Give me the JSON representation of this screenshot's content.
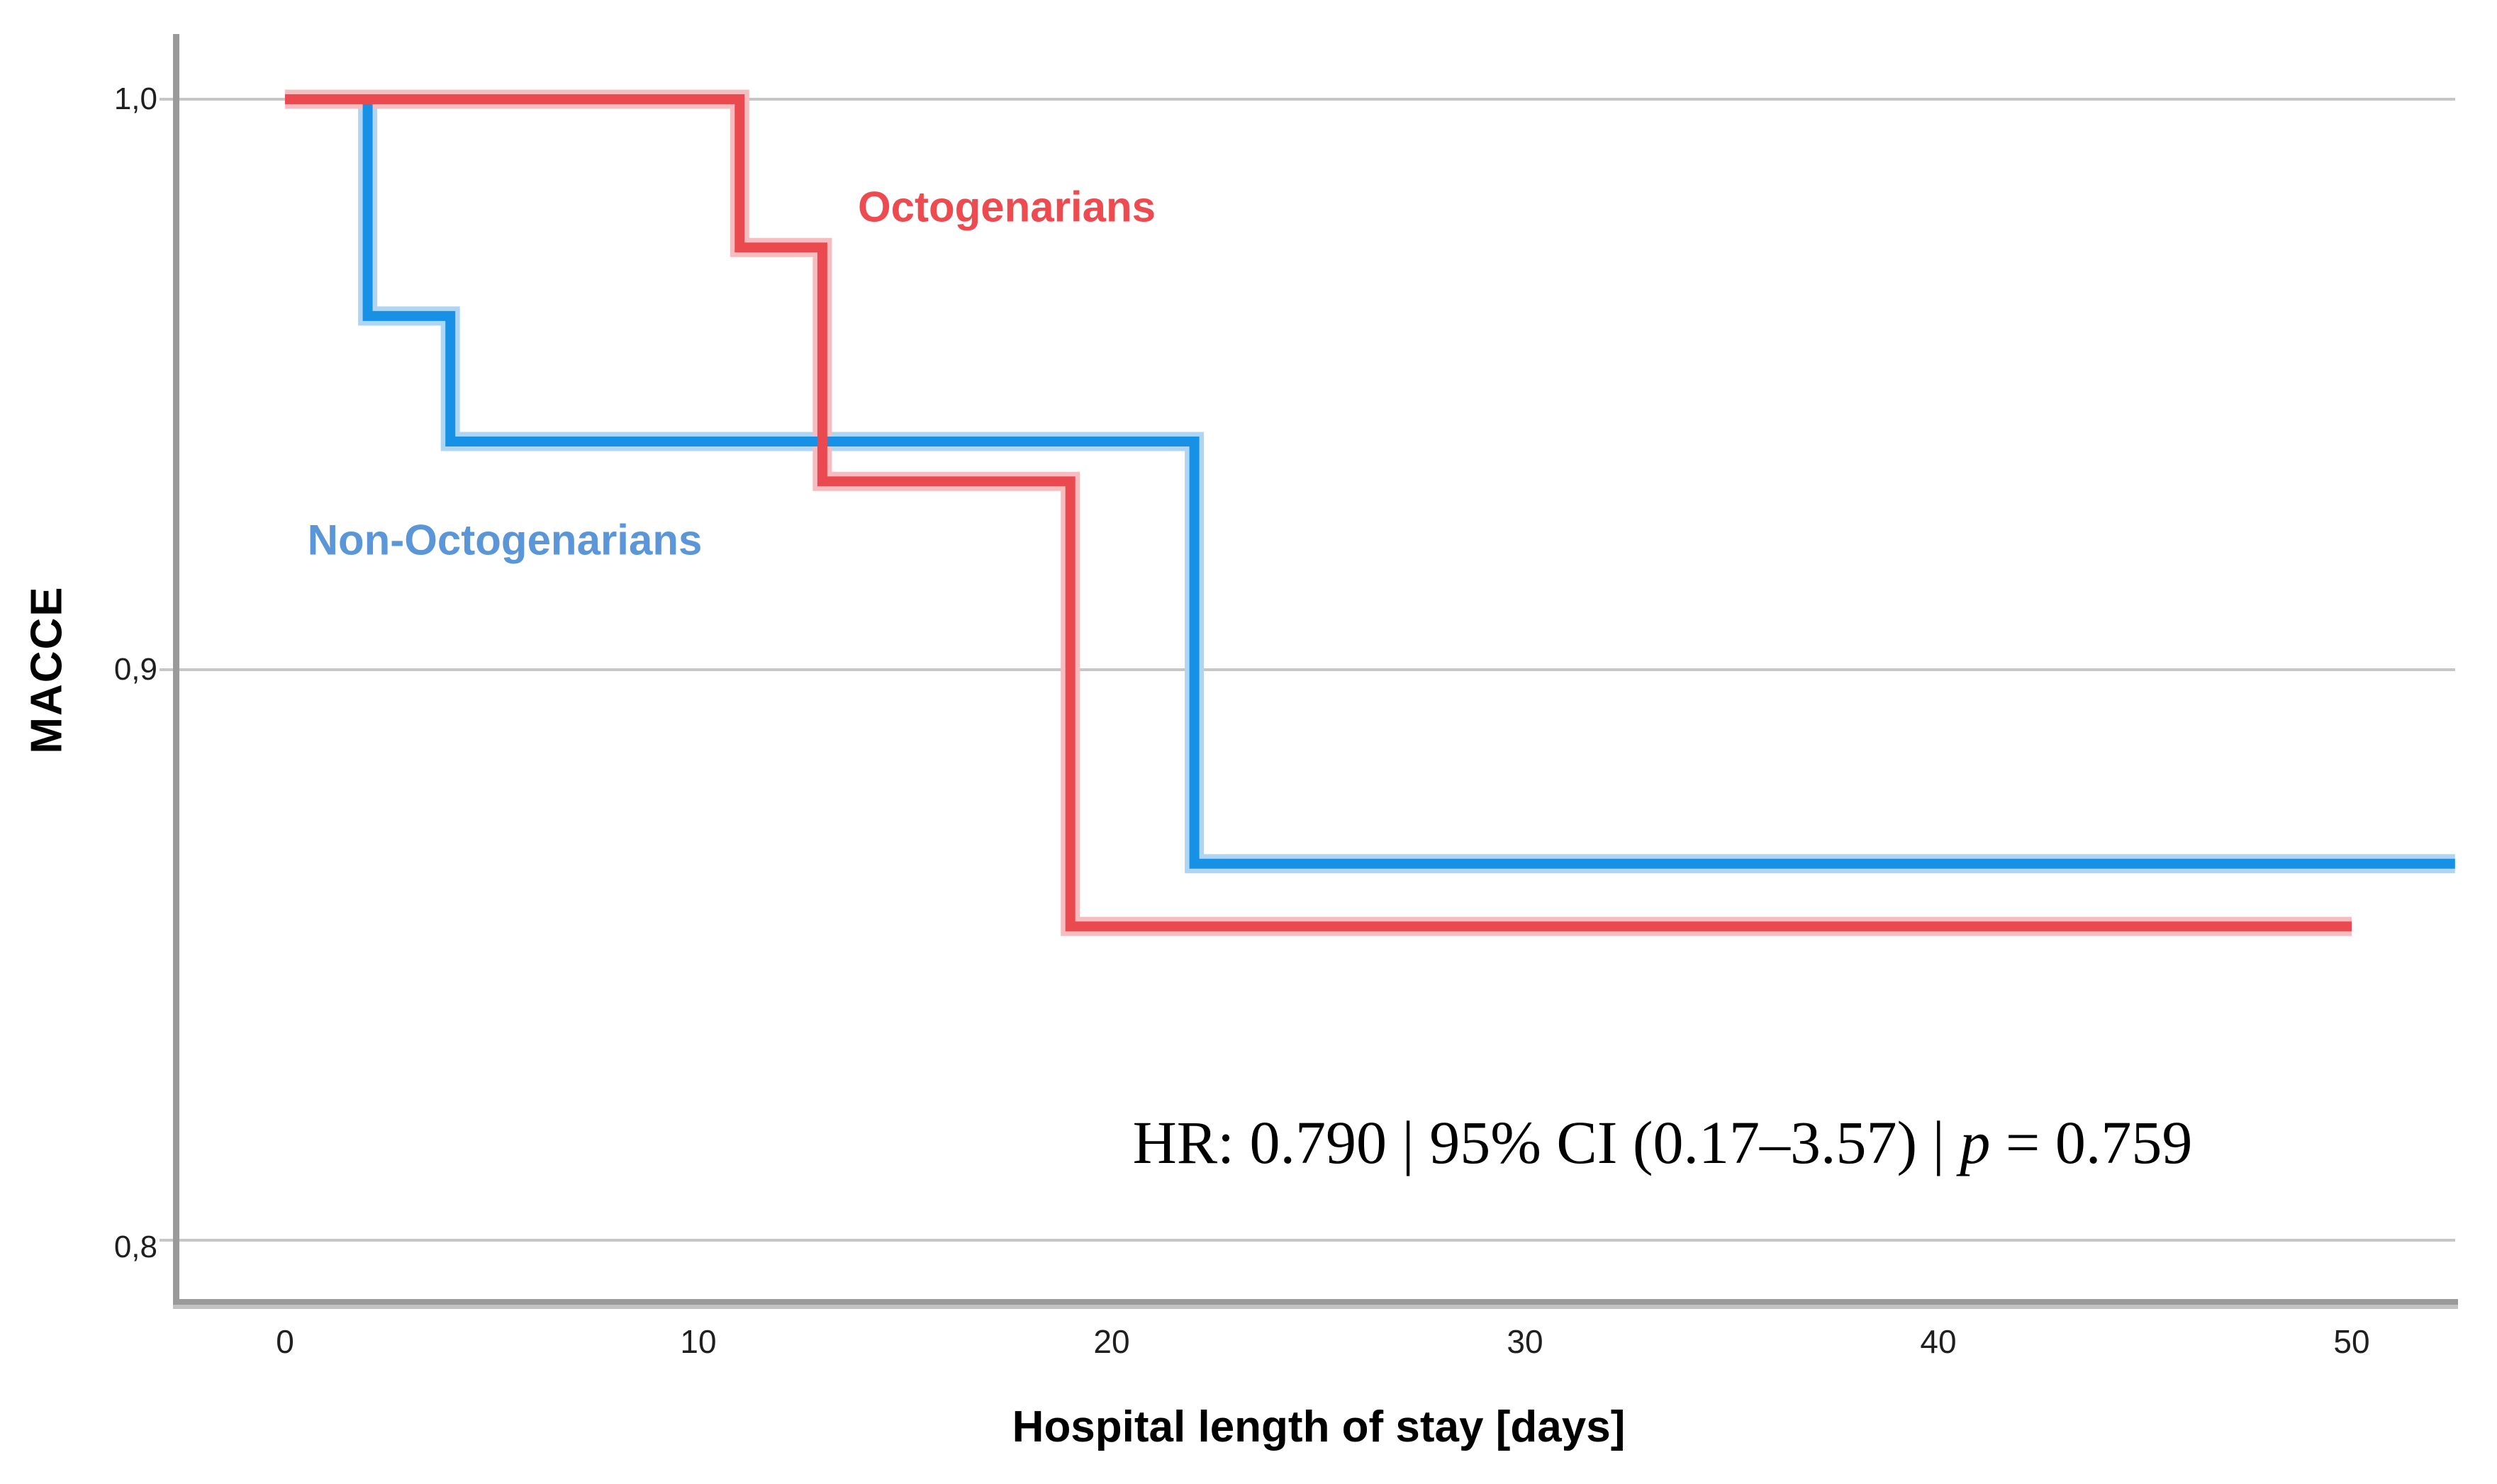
{
  "figure": {
    "y_axis_title": "MACCE",
    "x_axis_title": "Hospital length of stay [days]",
    "annotation": {
      "before_p": "HR: 0.790 | 95% CI (0.17–3.57) | ",
      "p_symbol": "p",
      "after_p": " = 0.759"
    }
  },
  "chart_data": {
    "type": "line",
    "subtype": "kaplan-meier-step",
    "title": "",
    "xlabel": "Hospital length of stay [days]",
    "ylabel": "MACCE",
    "xlim": [
      0,
      52.5
    ],
    "ylim": [
      0.785,
      1.005
    ],
    "grid": "horizontal-only",
    "legend_position": "inline-curve-labels",
    "annotation_text": "HR: 0.790 | 95% CI (0.17–3.57) | p = 0.759",
    "x_ticks": [
      {
        "value": 0,
        "label": "0"
      },
      {
        "value": 10,
        "label": "10"
      },
      {
        "value": 20,
        "label": "20"
      },
      {
        "value": 30,
        "label": "30"
      },
      {
        "value": 40,
        "label": "40"
      },
      {
        "value": 50,
        "label": "50"
      }
    ],
    "y_ticks": [
      {
        "value": 1.0,
        "label": "1,0"
      },
      {
        "value": 0.9,
        "label": "0,9"
      },
      {
        "value": 0.8,
        "label": "0,8"
      }
    ],
    "style": {
      "grid_color": "#c6c6c6",
      "spine_color": "#9a9a9a",
      "spine_shadow_color": "#c2c2c2",
      "tick_label_color": "#1f1f1f",
      "background": "#ffffff"
    },
    "series": [
      {
        "name": "Non-Octogenarians",
        "color": "#1791e5",
        "halo_color": "#aed6f4",
        "label_color": "#5a96d8",
        "points": [
          [
            0,
            1.0
          ],
          [
            2,
            1.0
          ],
          [
            2,
            0.962
          ],
          [
            4,
            0.962
          ],
          [
            4,
            0.94
          ],
          [
            22,
            0.94
          ],
          [
            22,
            0.866
          ],
          [
            52.5,
            0.866
          ]
        ]
      },
      {
        "name": "Octogenarians",
        "color": "#ea4a4f",
        "halo_color": "#f6bdc0",
        "label_color": "#ee4b50",
        "points": [
          [
            0,
            1.0
          ],
          [
            11,
            1.0
          ],
          [
            11,
            0.974
          ],
          [
            13,
            0.974
          ],
          [
            13,
            0.933
          ],
          [
            19,
            0.933
          ],
          [
            19,
            0.855
          ],
          [
            50,
            0.855
          ]
        ]
      }
    ]
  }
}
